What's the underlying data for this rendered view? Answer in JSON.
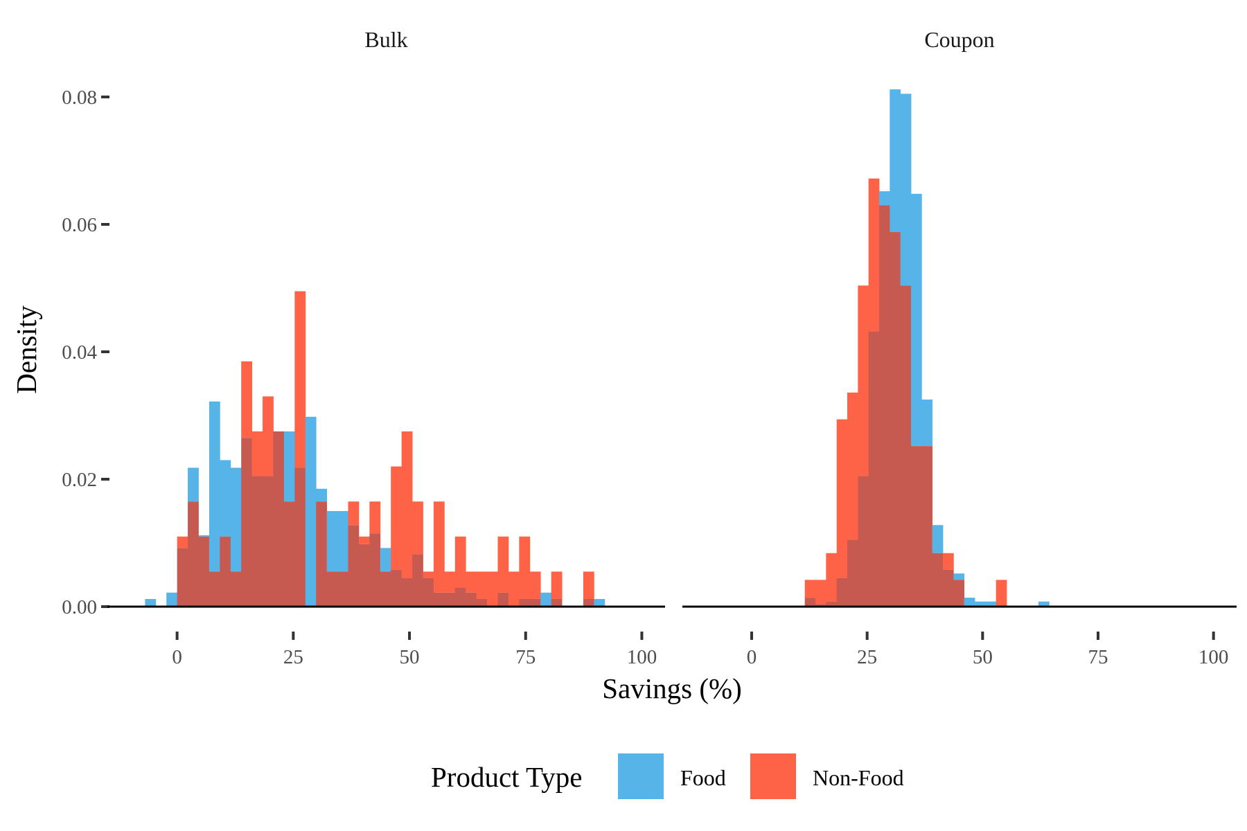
{
  "chart_data": {
    "type": "histogram",
    "ylabel": "Density",
    "xlabel": "Savings (%)",
    "xlim": [
      -15,
      105
    ],
    "ylim": [
      0,
      0.08
    ],
    "bin_width": 2.3,
    "x_ticks": [
      0,
      25,
      50,
      75,
      100
    ],
    "x_tick_labels": [
      "0",
      "25",
      "50",
      "75",
      "100"
    ],
    "y_ticks": [
      0,
      0.02,
      0.04,
      0.06,
      0.08
    ],
    "y_tick_labels": [
      "0.00",
      "0.02",
      "0.04",
      "0.06",
      "0.08"
    ],
    "grid": false,
    "legend": {
      "title": "Product Type",
      "position": "bottom",
      "entries": [
        {
          "label": "Food",
          "color": "#56B4E9"
        },
        {
          "label": "Non-Food",
          "color": "#FF6347"
        }
      ]
    },
    "fill_opacity": 0.85,
    "overlap_color": "#C75A50",
    "panels": [
      {
        "title": "Bulk",
        "series": [
          {
            "name": "Food",
            "color": "#56B4E9",
            "x": [
              -6.9,
              -4.6,
              -2.3,
              0,
              2.3,
              4.6,
              6.9,
              9.2,
              11.5,
              13.8,
              16.1,
              18.4,
              20.7,
              23.0,
              25.3,
              27.6,
              29.9,
              32.2,
              34.5,
              36.8,
              39.1,
              41.4,
              43.7,
              46.0,
              48.3,
              50.6,
              52.9,
              55.2,
              57.5,
              59.8,
              62.1,
              64.4,
              66.7,
              69.0,
              71.3,
              73.6,
              75.9,
              78.2,
              80.5,
              82.8,
              85.1,
              87.4,
              89.7,
              92.0,
              94.3
            ],
            "y": [
              0.0012,
              0,
              0.0022,
              0.0092,
              0.0218,
              0.0112,
              0.0322,
              0.023,
              0.0218,
              0.0265,
              0.0205,
              0.0205,
              0.0275,
              0.0275,
              0.0218,
              0.0298,
              0.0185,
              0.015,
              0.015,
              0.0128,
              0.0098,
              0.0115,
              0.0092,
              0.0058,
              0.0045,
              0.0082,
              0.0045,
              0.0022,
              0.0022,
              0.003,
              0.0022,
              0.0012,
              0,
              0.0022,
              0,
              0.0012,
              0.0012,
              0.0022,
              0.0012,
              0,
              0,
              0.0012,
              0.0012,
              0,
              0
            ]
          },
          {
            "name": "Non-Food",
            "color": "#FF6347",
            "x": [
              -6.9,
              -4.6,
              -2.3,
              0,
              2.3,
              4.6,
              6.9,
              9.2,
              11.5,
              13.8,
              16.1,
              18.4,
              20.7,
              23.0,
              25.3,
              27.6,
              29.9,
              32.2,
              34.5,
              36.8,
              39.1,
              41.4,
              43.7,
              46.0,
              48.3,
              50.6,
              52.9,
              55.2,
              57.5,
              59.8,
              62.1,
              64.4,
              66.7,
              69.0,
              71.3,
              73.6,
              75.9,
              78.2,
              80.5,
              82.8,
              85.1,
              87.4,
              89.7,
              92.0,
              94.3
            ],
            "y": [
              0,
              0,
              0,
              0.011,
              0.0165,
              0.011,
              0.0055,
              0.011,
              0.0055,
              0.0385,
              0.0275,
              0.033,
              0.0275,
              0.0165,
              0.0495,
              0,
              0.0165,
              0.0055,
              0.0055,
              0.0165,
              0.011,
              0.0165,
              0.0055,
              0.022,
              0.0275,
              0.0165,
              0.0055,
              0.0165,
              0.0055,
              0.011,
              0.0055,
              0.0055,
              0.0055,
              0.011,
              0.0055,
              0.011,
              0.0055,
              0,
              0.0055,
              0,
              0,
              0.0055,
              0,
              0,
              0
            ]
          }
        ]
      },
      {
        "title": "Coupon",
        "series": [
          {
            "name": "Food",
            "color": "#56B4E9",
            "x": [
              11.5,
              13.8,
              16.1,
              18.4,
              20.7,
              23.0,
              25.3,
              27.6,
              29.9,
              32.2,
              34.5,
              36.8,
              39.1,
              41.4,
              43.7,
              46.0,
              48.3,
              50.6,
              52.9,
              55.2,
              57.5,
              59.8,
              62.1,
              64.4
            ],
            "y": [
              0.0014,
              0.0004,
              0.0008,
              0.0045,
              0.0105,
              0.0205,
              0.0432,
              0.0652,
              0.0812,
              0.0805,
              0.0648,
              0.0325,
              0.0128,
              0.0058,
              0.0052,
              0.0014,
              0.0008,
              0.0008,
              0,
              0,
              0,
              0,
              0.0008,
              0
            ]
          },
          {
            "name": "Non-Food",
            "color": "#FF6347",
            "x": [
              11.5,
              13.8,
              16.1,
              18.4,
              20.7,
              23.0,
              25.3,
              27.6,
              29.9,
              32.2,
              34.5,
              36.8,
              39.1,
              41.4,
              43.7,
              46.0,
              48.3,
              50.6,
              52.9,
              55.2,
              57.5,
              59.8,
              62.1,
              64.4
            ],
            "y": [
              0.0042,
              0.0042,
              0.0084,
              0.0294,
              0.0336,
              0.0504,
              0.0672,
              0.063,
              0.0588,
              0.0504,
              0.0252,
              0.0252,
              0.0084,
              0.0084,
              0.0042,
              0,
              0,
              0,
              0.0042,
              0,
              0,
              0,
              0,
              0
            ]
          }
        ]
      }
    ]
  }
}
